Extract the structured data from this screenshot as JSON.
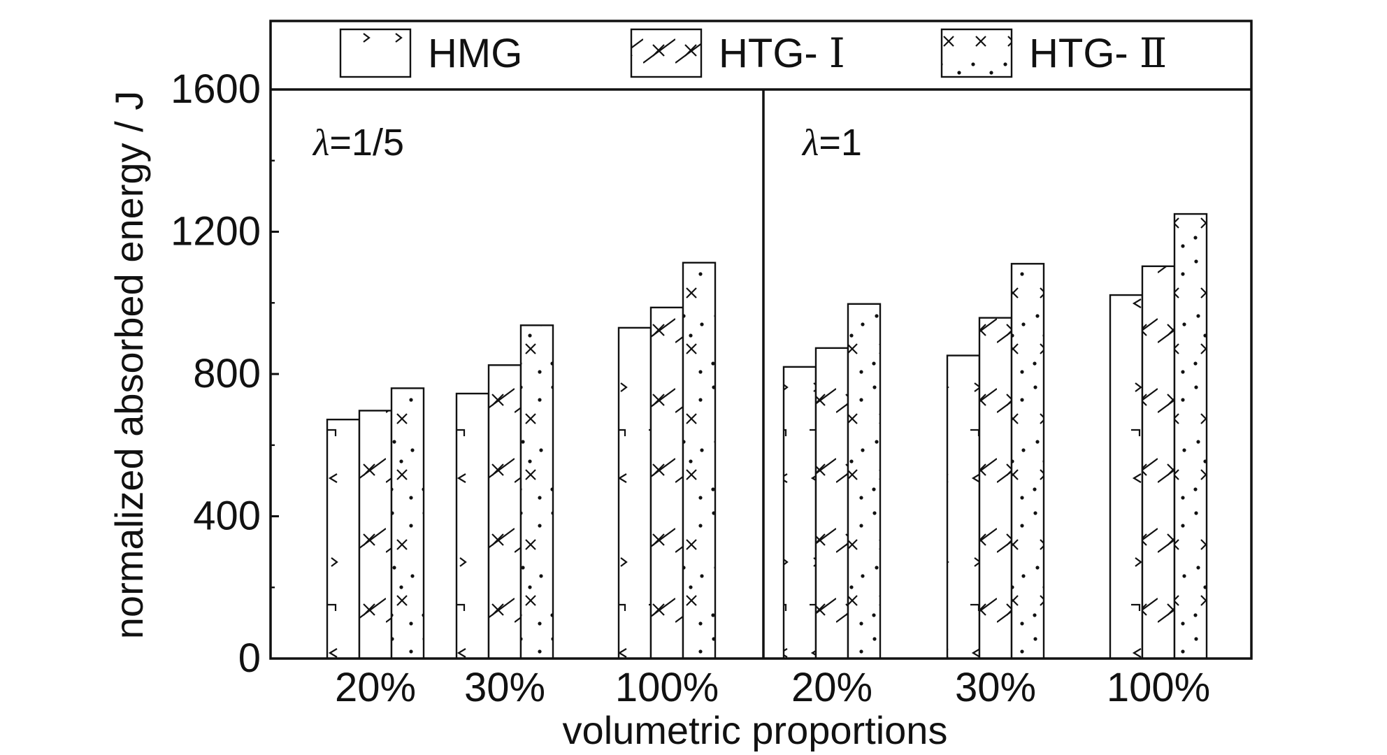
{
  "chart_data": {
    "type": "bar",
    "xlabel": "volumetric proportions",
    "ylabel": "normalized absorbed energy / J",
    "ylim": [
      0,
      1800
    ],
    "yticks": [
      0,
      400,
      800,
      1200,
      1600
    ],
    "grid": false,
    "legend_position": "top",
    "series": [
      {
        "name": "HMG",
        "name_prefix": "HMG",
        "name_roman": "",
        "pattern": "hmg-hatch"
      },
      {
        "name": "HTG- Ⅰ",
        "name_prefix": "HTG- ",
        "name_roman": "Ⅰ",
        "pattern": "cross-hatch"
      },
      {
        "name": "HTG- Ⅱ",
        "name_prefix": "HTG- ",
        "name_roman": "Ⅱ",
        "pattern": "dot-cross"
      }
    ],
    "panels": [
      {
        "label_symbol": "λ",
        "label_value": "=1/5",
        "categories": [
          "20%",
          "30%",
          "100%"
        ],
        "values": [
          [
            672,
            745,
            930
          ],
          [
            697,
            825,
            987
          ],
          [
            760,
            937,
            1113
          ]
        ]
      },
      {
        "label_symbol": "λ",
        "label_value": "=1",
        "categories": [
          "20%",
          "30%",
          "100%"
        ],
        "values": [
          [
            820,
            852,
            1022
          ],
          [
            873,
            958,
            1103
          ],
          [
            997,
            1110,
            1250
          ]
        ]
      }
    ]
  },
  "colors": {
    "ink": "#111111",
    "background": "#ffffff"
  }
}
